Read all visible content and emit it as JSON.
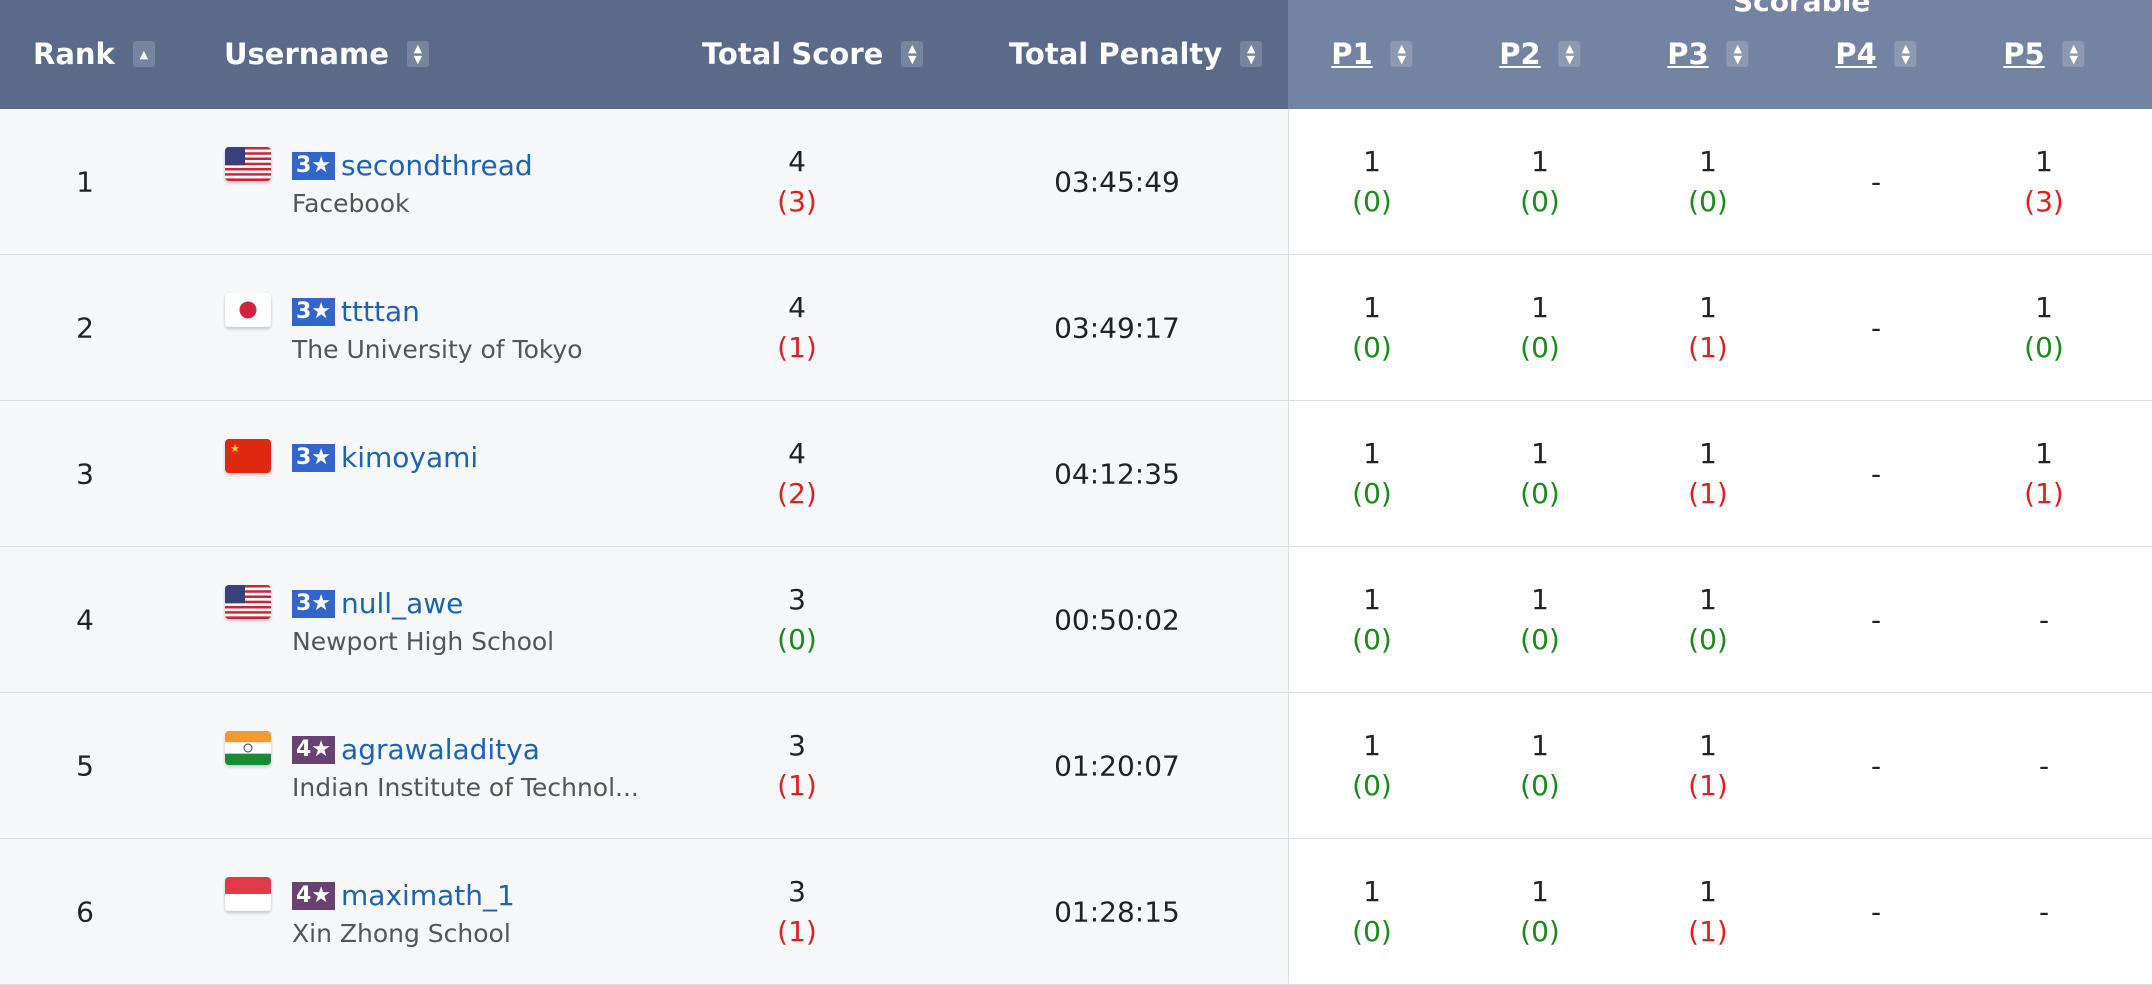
{
  "header": {
    "group_label": "Scorable",
    "rank": "Rank",
    "username": "Username",
    "total_score": "Total Score",
    "total_penalty": "Total Penalty",
    "problems": [
      "P1",
      "P2",
      "P3",
      "P4",
      "P5"
    ]
  },
  "colors": {
    "header_left": "#5a6a88",
    "header_right": "#7483a1",
    "link": "#1e62b4",
    "penalty_red": "#e02020",
    "zero_green": "#1a8a1a",
    "star3": "#3366cc",
    "star4": "#684273"
  },
  "rows": [
    {
      "rank": "1",
      "flag": "us",
      "stars": "3★",
      "username": "secondthread",
      "institution": "Facebook",
      "score": "4",
      "score_sub": "(3)",
      "score_sub_color": "red",
      "penalty": "03:45:49",
      "problems": [
        {
          "v": "1",
          "s": "(0)",
          "c": "green"
        },
        {
          "v": "1",
          "s": "(0)",
          "c": "green"
        },
        {
          "v": "1",
          "s": "(0)",
          "c": "green"
        },
        {
          "v": "-",
          "s": "",
          "c": ""
        },
        {
          "v": "1",
          "s": "(3)",
          "c": "red"
        }
      ]
    },
    {
      "rank": "2",
      "flag": "jp",
      "stars": "3★",
      "username": "ttttan",
      "institution": "The University of Tokyo",
      "score": "4",
      "score_sub": "(1)",
      "score_sub_color": "red",
      "penalty": "03:49:17",
      "problems": [
        {
          "v": "1",
          "s": "(0)",
          "c": "green"
        },
        {
          "v": "1",
          "s": "(0)",
          "c": "green"
        },
        {
          "v": "1",
          "s": "(1)",
          "c": "red"
        },
        {
          "v": "-",
          "s": "",
          "c": ""
        },
        {
          "v": "1",
          "s": "(0)",
          "c": "green"
        }
      ]
    },
    {
      "rank": "3",
      "flag": "cn",
      "stars": "3★",
      "username": "kimoyami",
      "institution": "",
      "score": "4",
      "score_sub": "(2)",
      "score_sub_color": "red",
      "penalty": "04:12:35",
      "problems": [
        {
          "v": "1",
          "s": "(0)",
          "c": "green"
        },
        {
          "v": "1",
          "s": "(0)",
          "c": "green"
        },
        {
          "v": "1",
          "s": "(1)",
          "c": "red"
        },
        {
          "v": "-",
          "s": "",
          "c": ""
        },
        {
          "v": "1",
          "s": "(1)",
          "c": "red"
        }
      ]
    },
    {
      "rank": "4",
      "flag": "us",
      "stars": "3★",
      "username": "null_awe",
      "institution": "Newport High School",
      "score": "3",
      "score_sub": "(0)",
      "score_sub_color": "green",
      "penalty": "00:50:02",
      "problems": [
        {
          "v": "1",
          "s": "(0)",
          "c": "green"
        },
        {
          "v": "1",
          "s": "(0)",
          "c": "green"
        },
        {
          "v": "1",
          "s": "(0)",
          "c": "green"
        },
        {
          "v": "-",
          "s": "",
          "c": ""
        },
        {
          "v": "-",
          "s": "",
          "c": ""
        }
      ]
    },
    {
      "rank": "5",
      "flag": "in",
      "stars": "4★",
      "username": "agrawaladitya",
      "institution": "Indian Institute of Technol...",
      "score": "3",
      "score_sub": "(1)",
      "score_sub_color": "red",
      "penalty": "01:20:07",
      "problems": [
        {
          "v": "1",
          "s": "(0)",
          "c": "green"
        },
        {
          "v": "1",
          "s": "(0)",
          "c": "green"
        },
        {
          "v": "1",
          "s": "(1)",
          "c": "red"
        },
        {
          "v": "-",
          "s": "",
          "c": ""
        },
        {
          "v": "-",
          "s": "",
          "c": ""
        }
      ]
    },
    {
      "rank": "6",
      "flag": "sg",
      "stars": "4★",
      "username": "maximath_1",
      "institution": "Xin Zhong School",
      "score": "3",
      "score_sub": "(1)",
      "score_sub_color": "red",
      "penalty": "01:28:15",
      "problems": [
        {
          "v": "1",
          "s": "(0)",
          "c": "green"
        },
        {
          "v": "1",
          "s": "(0)",
          "c": "green"
        },
        {
          "v": "1",
          "s": "(1)",
          "c": "red"
        },
        {
          "v": "-",
          "s": "",
          "c": ""
        },
        {
          "v": "-",
          "s": "",
          "c": ""
        }
      ]
    }
  ]
}
